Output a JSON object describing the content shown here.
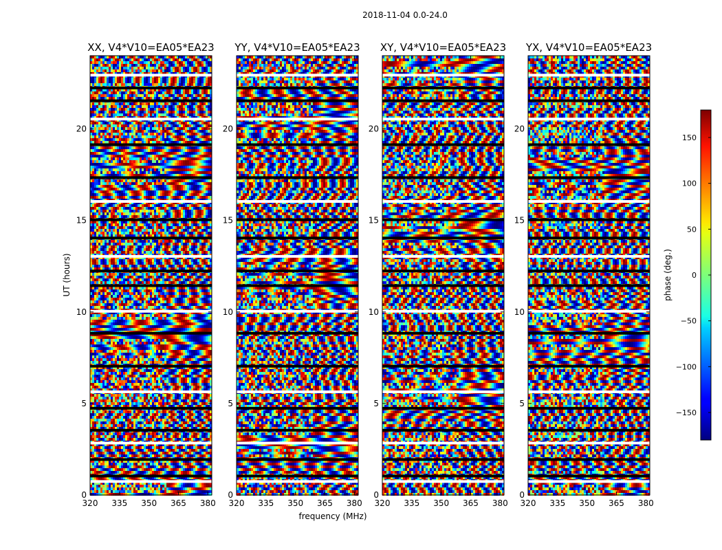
{
  "chart_data": {
    "type": "heatmap",
    "title": "2018-11-04 0.0-24.0",
    "xlabel": "frequency (MHz)",
    "ylabel": "UT (hours)",
    "xlim": [
      320,
      382
    ],
    "ylim": [
      0,
      24
    ],
    "x_ticks": [
      "320",
      "335",
      "350",
      "365",
      "380"
    ],
    "y_ticks": [
      "0",
      "5",
      "10",
      "15",
      "20"
    ],
    "panels": [
      {
        "title": "XX, V4*V10=EA05*EA23",
        "colormap": "jet"
      },
      {
        "title": "YY, V4*V10=EA05*EA23",
        "colormap": "jet"
      },
      {
        "title": "XY, V4*V10=EA05*EA23",
        "colormap": "jet"
      },
      {
        "title": "YX, V4*V10=EA05*EA23",
        "colormap": "jet"
      }
    ],
    "colorbar": {
      "label": "phase (deg.)",
      "range": [
        -180,
        180
      ],
      "ticks": [
        "150",
        "100",
        "50",
        "0",
        "−50",
        "−100",
        "−150"
      ],
      "colormap": "jet"
    },
    "gap_hours": [
      0.7,
      1.0,
      1.9,
      2.8,
      3.5,
      4.7,
      5.6,
      7.0,
      8.8,
      10.0,
      11.4,
      12.2,
      13.0,
      14.0,
      15.0,
      16.0,
      17.3,
      19.1,
      20.5,
      21.5,
      22.2,
      22.9
    ]
  }
}
